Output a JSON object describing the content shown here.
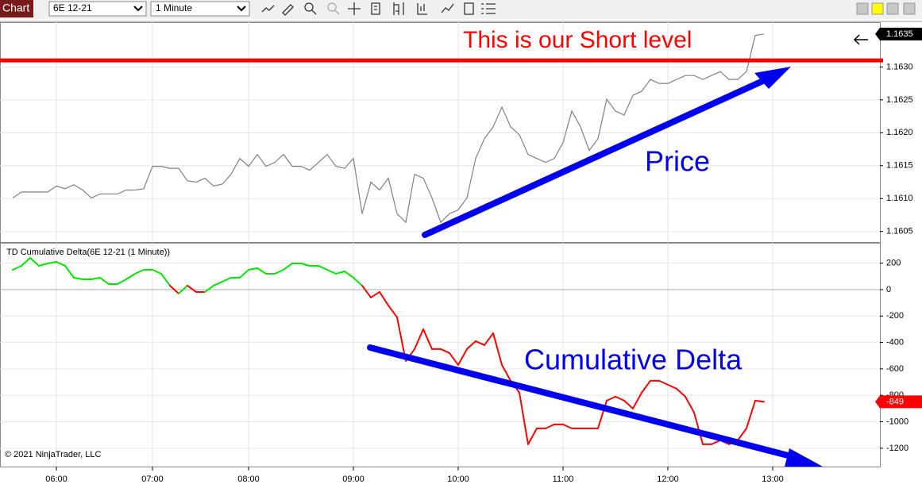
{
  "toolbar": {
    "chart_tab": "Chart",
    "instrument": "6E 12-21",
    "interval": "1 Minute"
  },
  "chart_data": {
    "type": "line",
    "grid": true,
    "categories": [
      null,
      null,
      null,
      null,
      null,
      "06:00",
      null,
      null,
      null,
      null,
      null,
      null,
      null,
      null,
      null,
      null,
      "07:00",
      null,
      null,
      null,
      null,
      null,
      null,
      null,
      null,
      null,
      null,
      "08:00",
      null,
      null,
      null,
      null,
      null,
      null,
      null,
      null,
      null,
      null,
      null,
      "09:00",
      null,
      null,
      null,
      null,
      null,
      null,
      null,
      null,
      null,
      null,
      null,
      "10:00",
      null,
      null,
      null,
      null,
      null,
      null,
      null,
      null,
      null,
      null,
      null,
      "11:00",
      null,
      null,
      null,
      null,
      null,
      null,
      null,
      null,
      null,
      null,
      null,
      "12:00",
      null,
      null,
      null,
      null,
      null,
      null,
      null,
      null,
      null,
      null,
      null,
      "13:00"
    ],
    "panels": [
      {
        "type": "line",
        "ylim": [
          1.16034,
          1.16368
        ],
        "yticks": [
          1.1605,
          {
            "value": 1.161,
            "label": "1.1610"
          },
          1.1615,
          {
            "value": 1.162,
            "label": "1.1620"
          },
          1.1625,
          {
            "value": 1.163,
            "label": "1.1630"
          }
        ],
        "series": [
          {
            "color": "#808080",
            "values": [
              1.16101,
              1.1611,
              1.1611,
              1.1611,
              1.1611,
              1.16119,
              1.16115,
              1.16121,
              1.16113,
              1.16101,
              1.16107,
              1.16107,
              1.16107,
              1.16113,
              1.16113,
              1.16115,
              1.16149,
              1.16149,
              1.16146,
              1.16146,
              1.16127,
              1.16125,
              1.16131,
              1.16119,
              1.16122,
              1.16137,
              1.16161,
              1.16149,
              1.16167,
              1.16149,
              1.16155,
              1.16167,
              1.16149,
              1.16149,
              1.16143,
              1.16155,
              1.16167,
              1.16149,
              1.16146,
              1.16161,
              1.16077,
              1.16125,
              1.16113,
              1.16131,
              1.16077,
              1.16064,
              1.16137,
              1.16131,
              1.16101,
              1.16064,
              1.16077,
              1.16083,
              1.16101,
              1.16161,
              1.16191,
              1.16209,
              1.16239,
              1.16209,
              1.16197,
              1.16167,
              1.16161,
              1.16155,
              1.16161,
              1.16185,
              1.16233,
              1.16209,
              1.16173,
              1.16191,
              1.16251,
              1.16233,
              1.16227,
              1.16257,
              1.16263,
              1.16281,
              1.16275,
              1.16275,
              1.16281,
              1.16287,
              1.16287,
              1.16281,
              1.16287,
              1.16293,
              1.16281,
              1.16281,
              1.16293,
              1.16348,
              1.1635,
              null
            ]
          }
        ],
        "level": {
          "value": 1.1631,
          "color": "#ff0000",
          "label": "This is our Short level"
        },
        "annotation": "Price"
      },
      {
        "type": "line",
        "title": "TD Cumulative Delta(6E 12-21 (1 Minute))",
        "ylim": [
          -1339,
          354
        ],
        "yticks": [
          200,
          0,
          -200,
          -400,
          -600,
          -800,
          -1000,
          -1200
        ],
        "series": [
          {
            "up_color": "#00e600",
            "down_color": "#ff0000",
            "values": [
              150,
              180,
              240,
              180,
              198,
              210,
              180,
              90,
              78,
              78,
              90,
              42,
              42,
              78,
              120,
              150,
              150,
              120,
              30,
              -30,
              30,
              -18,
              -18,
              30,
              60,
              90,
              90,
              150,
              162,
              120,
              120,
              150,
              198,
              198,
              180,
              180,
              150,
              120,
              138,
              90,
              30,
              -60,
              -18,
              -120,
              -210,
              -540,
              -450,
              -300,
              -450,
              -450,
              -480,
              -570,
              -450,
              -390,
              -420,
              -330,
              -570,
              -690,
              -780,
              -1170,
              -1050,
              -1050,
              -1020,
              -1020,
              -1050,
              -1050,
              -1050,
              -1050,
              -840,
              -810,
              -840,
              -900,
              -780,
              -690,
              -690,
              -720,
              -750,
              -810,
              -930,
              -1170,
              -1170,
              -1140,
              -1170,
              -1140,
              -1050,
              -840,
              -849,
              null
            ]
          }
        ],
        "annotation": "Cumulative Delta"
      }
    ],
    "copyright": "© 2021 NinjaTrader, LLC"
  }
}
